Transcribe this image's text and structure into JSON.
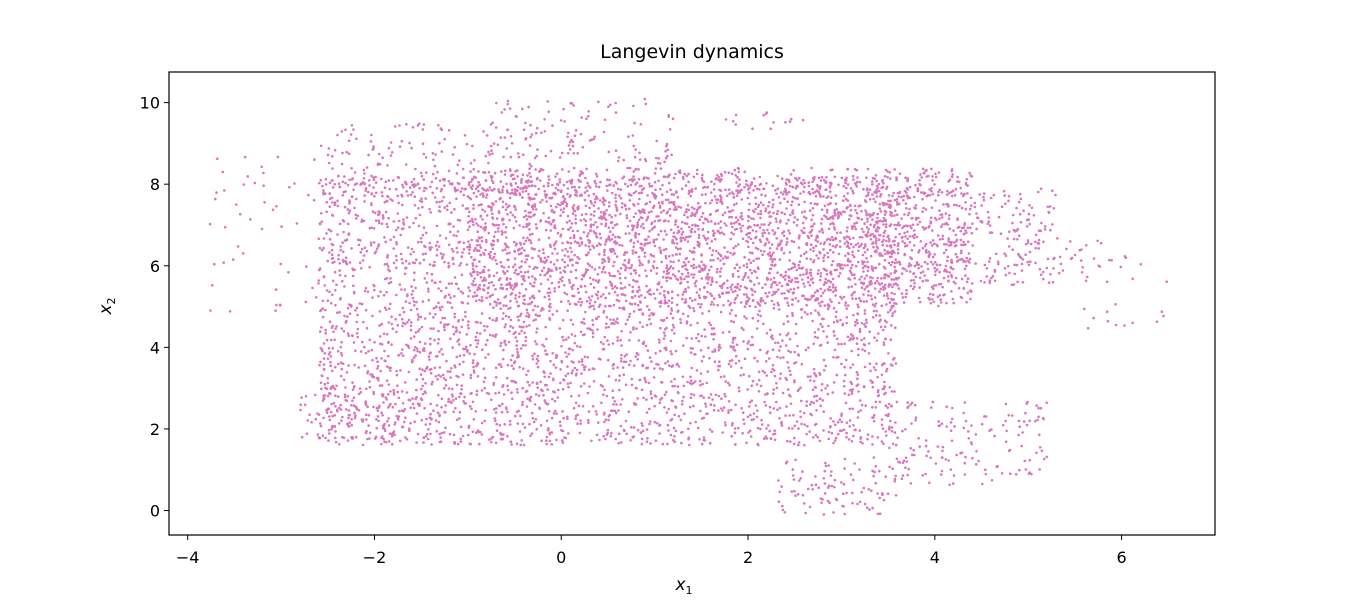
{
  "chart_data": {
    "type": "scatter",
    "title": "Langevin dynamics",
    "xlabel": "x",
    "xlabel_sub": "1",
    "ylabel": "x",
    "ylabel_sub": "2",
    "xlim": [
      -4.2,
      7.0
    ],
    "ylim": [
      -0.6,
      10.75
    ],
    "xticks": [
      -4,
      -2,
      0,
      2,
      4,
      6
    ],
    "yticks": [
      0,
      2,
      4,
      6,
      8,
      10
    ],
    "xtick_labels": [
      "−4",
      "−2",
      "0",
      "2",
      "4",
      "6"
    ],
    "ytick_labels": [
      "0",
      "2",
      "4",
      "6",
      "8",
      "10"
    ],
    "grid": false,
    "legend": "none",
    "marker_color": "#da76bd",
    "series": [
      {
        "regions": [
          {
            "x": [
              -2.6,
              3.6
            ],
            "y": [
              1.6,
              8.2
            ],
            "density": 1.0
          },
          {
            "x": [
              -1.0,
              4.4
            ],
            "y": [
              5.0,
              8.4
            ],
            "density": 1.0
          },
          {
            "x": [
              3.2,
              5.3
            ],
            "y": [
              5.5,
              7.9
            ],
            "density": 0.8
          },
          {
            "x": [
              -2.8,
              -1.5
            ],
            "y": [
              1.7,
              3.0
            ],
            "density": 0.7
          },
          {
            "x": [
              2.3,
              3.7
            ],
            "y": [
              -0.1,
              1.3
            ],
            "density": 0.6
          },
          {
            "x": [
              3.5,
              5.2
            ],
            "y": [
              0.6,
              2.7
            ],
            "density": 0.45
          },
          {
            "x": [
              -2.6,
              -0.3
            ],
            "y": [
              7.8,
              9.5
            ],
            "density": 0.45
          },
          {
            "x": [
              -0.8,
              1.2
            ],
            "y": [
              8.5,
              10.1
            ],
            "density": 0.4
          },
          {
            "x": [
              1.7,
              2.7
            ],
            "y": [
              9.3,
              9.8
            ],
            "density": 0.3
          },
          {
            "x": [
              4.8,
              5.8
            ],
            "y": [
              5.8,
              6.8
            ],
            "density": 0.35
          },
          {
            "x": [
              5.6,
              6.5
            ],
            "y": [
              4.4,
              6.3
            ],
            "density": 0.15
          },
          {
            "x": [
              -3.8,
              -2.6
            ],
            "y": [
              4.5,
              8.9
            ],
            "density": 0.1
          }
        ]
      }
    ]
  }
}
